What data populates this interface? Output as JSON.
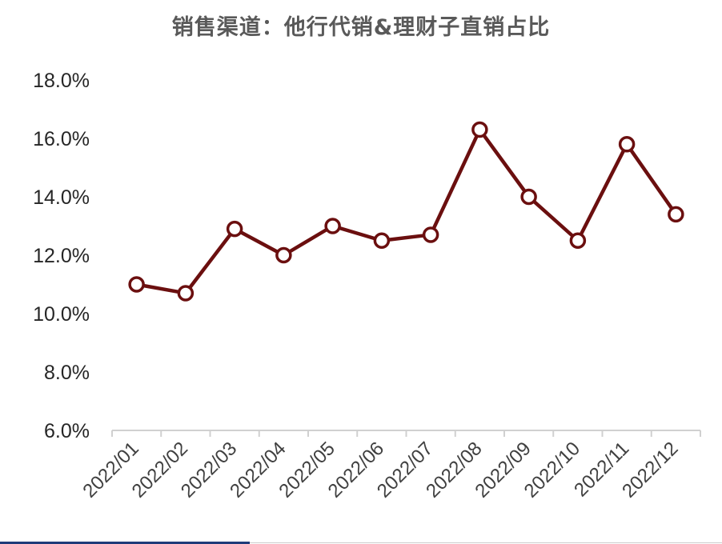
{
  "chart_data": {
    "type": "line",
    "title": "销售渠道：他行代销&理财子直销占比",
    "categories": [
      "2022/01",
      "2022/02",
      "2022/03",
      "2022/04",
      "2022/05",
      "2022/06",
      "2022/07",
      "2022/08",
      "2022/09",
      "2022/10",
      "2022/11",
      "2022/12"
    ],
    "series": [
      {
        "values": [
          11.0,
          10.7,
          12.9,
          12.0,
          13.0,
          12.5,
          12.7,
          16.3,
          14.0,
          12.5,
          15.8,
          13.4
        ]
      }
    ],
    "ylim": [
      6,
      18
    ],
    "yticks": [
      "6.0%",
      "8.0%",
      "10.0%",
      "12.0%",
      "14.0%",
      "16.0%",
      "18.0%"
    ],
    "xlabel": "",
    "ylabel": "",
    "grid": false,
    "legend": "none",
    "line_color": "#6b0f0f",
    "marker": "open-circle"
  }
}
